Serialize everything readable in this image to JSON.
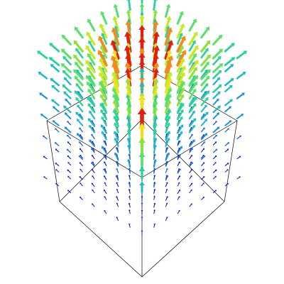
{
  "scene": {
    "description_kind": "3d-vector-field-render",
    "background_color": "#ffffff",
    "box_edge_color": "#000000",
    "colormap": [
      "#0a17c8",
      "#1a5fd6",
      "#1f8fcf",
      "#24b6c2",
      "#2fd09a",
      "#57e06a",
      "#8fe03c",
      "#c8e82a",
      "#f0e020",
      "#f58a18",
      "#e01f10"
    ]
  }
}
